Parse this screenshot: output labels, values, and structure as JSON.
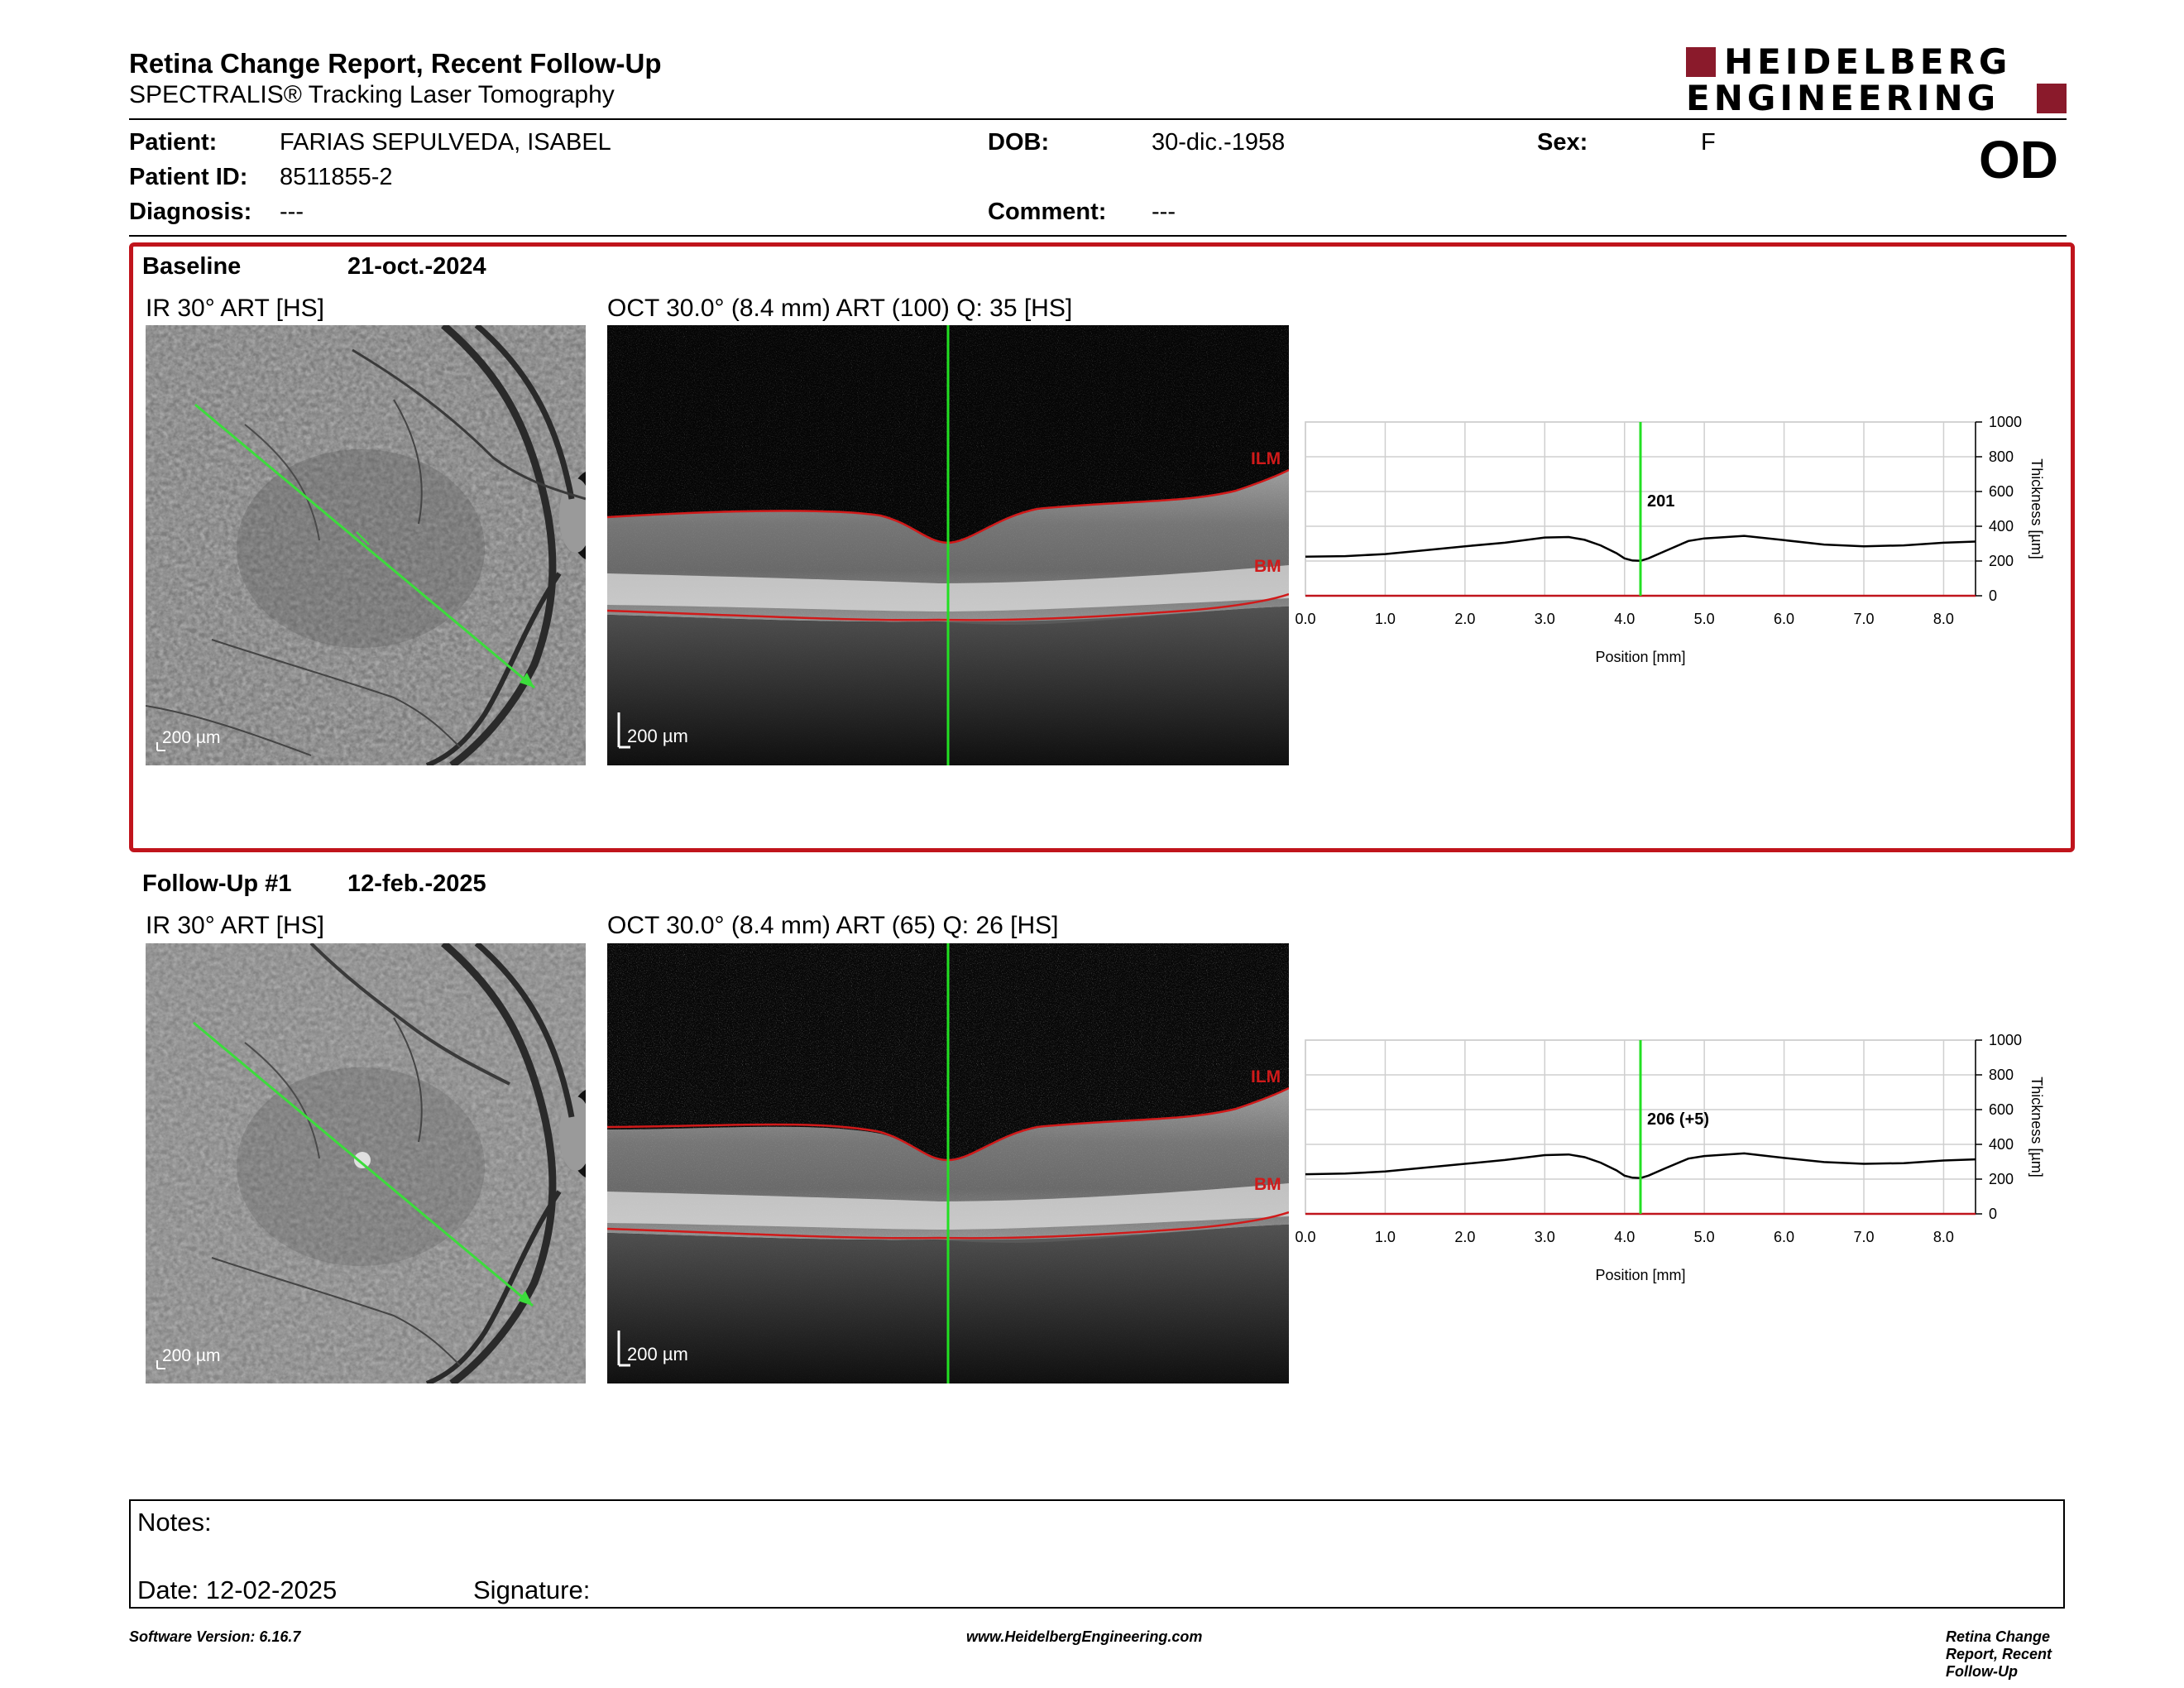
{
  "header": {
    "title": "Retina Change Report, Recent Follow-Up",
    "subtitle": "SPECTRALIS® Tracking Laser Tomography",
    "logo_line1": "HEIDELBERG",
    "logo_line2": "ENGINEERING",
    "brand_color": "#8a1a2b"
  },
  "patient": {
    "patient_label": "Patient:",
    "patient_value": "FARIAS SEPULVEDA, ISABEL",
    "id_label": "Patient ID:",
    "id_value": "8511855-2",
    "diagnosis_label": "Diagnosis:",
    "diagnosis_value": "---",
    "dob_label": "DOB:",
    "dob_value": "30-dic.-1958",
    "comment_label": "Comment:",
    "comment_value": "---",
    "sex_label": "Sex:",
    "sex_value": "F",
    "eye": "OD"
  },
  "baseline": {
    "label": "Baseline",
    "date": "21-oct.-2024",
    "ir_caption": "IR 30° ART [HS]",
    "oct_caption": "OCT 30.0° (8.4 mm) ART (100) Q: 35 [HS]",
    "ir_scale": "200 µm",
    "oct_scale": "200 µm",
    "ilm_label": "ILM",
    "bm_label": "BM",
    "highlight_color": "#c0141c"
  },
  "followup": {
    "label": "Follow-Up #1",
    "date": "12-feb.-2025",
    "ir_caption": "IR 30° ART [HS]",
    "oct_caption": "OCT 30.0° (8.4 mm) ART (65) Q: 26 [HS]",
    "ir_scale": "200 µm",
    "oct_scale": "200 µm",
    "ilm_label": "ILM",
    "bm_label": "BM"
  },
  "chart_data": [
    {
      "type": "line",
      "xlabel": "Position [mm]",
      "ylabel": "Thickness [µm]",
      "xlim": [
        0.0,
        8.4
      ],
      "ylim": [
        0,
        1000
      ],
      "xticks": [
        "0.0",
        "1.0",
        "2.0",
        "3.0",
        "4.0",
        "5.0",
        "6.0",
        "7.0",
        "8.0"
      ],
      "yticks": [
        "0",
        "200",
        "400",
        "600",
        "800",
        "1000"
      ],
      "grid": true,
      "marker_x": 4.2,
      "marker_label": "201",
      "x": [
        0.0,
        0.5,
        1.0,
        1.5,
        2.0,
        2.5,
        3.0,
        3.3,
        3.5,
        3.7,
        3.9,
        4.0,
        4.1,
        4.2,
        4.3,
        4.5,
        4.8,
        5.0,
        5.5,
        6.0,
        6.5,
        7.0,
        7.5,
        8.0,
        8.4
      ],
      "y": [
        225,
        228,
        240,
        262,
        285,
        305,
        335,
        338,
        322,
        290,
        245,
        215,
        203,
        201,
        215,
        255,
        315,
        330,
        345,
        320,
        295,
        285,
        290,
        305,
        312
      ]
    },
    {
      "type": "line",
      "xlabel": "Position [mm]",
      "ylabel": "Thickness [µm]",
      "xlim": [
        0.0,
        8.4
      ],
      "ylim": [
        0,
        1000
      ],
      "xticks": [
        "0.0",
        "1.0",
        "2.0",
        "3.0",
        "4.0",
        "5.0",
        "6.0",
        "7.0",
        "8.0"
      ],
      "yticks": [
        "0",
        "200",
        "400",
        "600",
        "800",
        "1000"
      ],
      "grid": true,
      "marker_x": 4.2,
      "marker_label": "206 (+5)",
      "x": [
        0.0,
        0.5,
        1.0,
        1.5,
        2.0,
        2.5,
        3.0,
        3.3,
        3.5,
        3.7,
        3.9,
        4.0,
        4.1,
        4.2,
        4.3,
        4.5,
        4.8,
        5.0,
        5.5,
        6.0,
        6.5,
        7.0,
        7.5,
        8.0,
        8.4
      ],
      "y": [
        228,
        232,
        244,
        266,
        288,
        310,
        338,
        342,
        326,
        295,
        250,
        220,
        208,
        206,
        220,
        260,
        318,
        333,
        348,
        322,
        298,
        288,
        292,
        307,
        314
      ]
    }
  ],
  "notes": {
    "notes_label": "Notes:",
    "date_label": "Date: 12-02-2025",
    "signature_label": "Signature:"
  },
  "footer": {
    "version": "Software Version: 6.16.7",
    "website": "www.HeidelbergEngineering.com",
    "report_name": "Retina Change Report, Recent Follow-Up"
  }
}
